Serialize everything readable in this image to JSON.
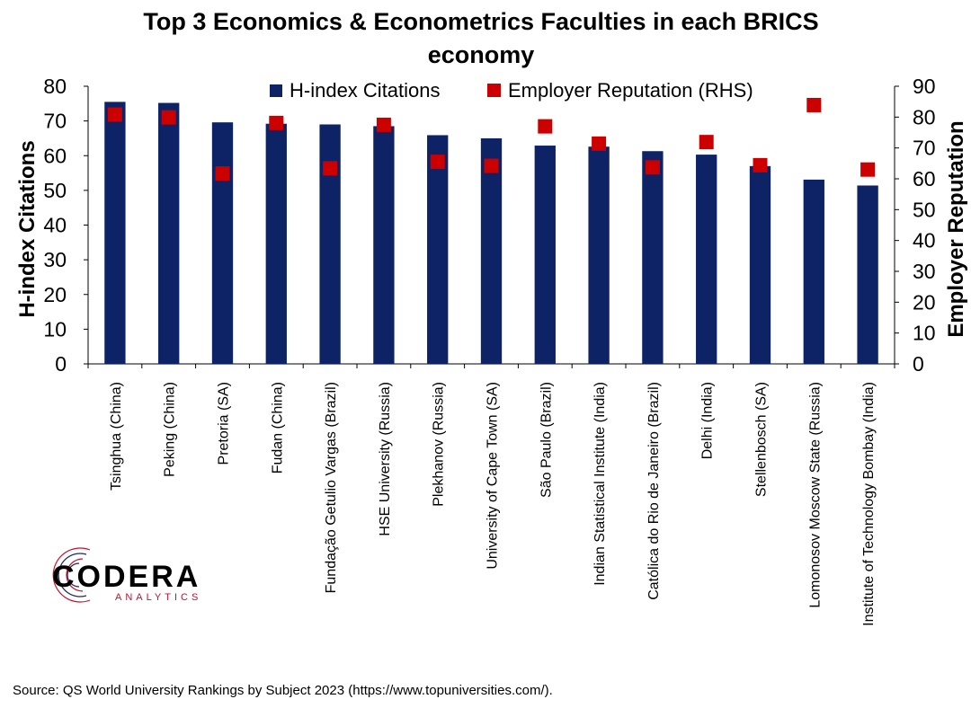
{
  "chart_data": {
    "type": "bar",
    "title_line1": "Top 3 Economics & Econometrics Faculties in each BRICS",
    "title_line2": "economy",
    "categories": [
      "Tsinghua (China)",
      "Peking (China)",
      "Pretoria (SA)",
      "Fudan (China)",
      "Fundação Getulio Vargas (Brazil)",
      "HSE University (Russia)",
      "Plekhanov (Russia)",
      "University of Cape Town (SA)",
      "São Paulo (Brazil)",
      "Indian Statistical Institute (India)",
      "Católica do Rio de Janeiro (Brazil)",
      "Delhi (India)",
      "Stellenbosch (SA)",
      "Lomonosov Moscow State (Russia)",
      "Institute of Technology Bombay (India)"
    ],
    "series": [
      {
        "name": "H-index Citations",
        "type": "bar",
        "axis": "left",
        "color": "#0d2366",
        "values": [
          75.5,
          75.2,
          69.6,
          69.2,
          69.0,
          68.5,
          65.9,
          65.0,
          62.9,
          62.6,
          61.3,
          60.3,
          57.0,
          53.1,
          51.4
        ]
      },
      {
        "name": "Employer Reputation (RHS)",
        "type": "scatter",
        "axis": "right",
        "color": "#cc0000",
        "values": [
          80.8,
          79.9,
          61.7,
          78.1,
          63.4,
          77.5,
          65.5,
          64.2,
          77.0,
          71.4,
          63.7,
          71.9,
          64.4,
          83.9,
          63.0
        ]
      }
    ],
    "ylabel_left": "H-index Citations",
    "ylabel_right": "Employer Reputation",
    "ylim_left": [
      0,
      80
    ],
    "ylim_right": [
      0,
      90
    ],
    "yticks_left": [
      "0",
      "10",
      "20",
      "30",
      "40",
      "50",
      "60",
      "70",
      "80"
    ],
    "yticks_right": [
      "0",
      "10",
      "20",
      "30",
      "40",
      "50",
      "60",
      "70",
      "80",
      "90"
    ],
    "legend_position": "top",
    "grid": false
  },
  "logo": {
    "main": "CODERA",
    "sub": "ANALYTICS",
    "color_main": "#111111",
    "color_sub": "#c8102e"
  },
  "source": "Source: QS World University Rankings by Subject 2023 (https://www.topuniversities.com/)."
}
